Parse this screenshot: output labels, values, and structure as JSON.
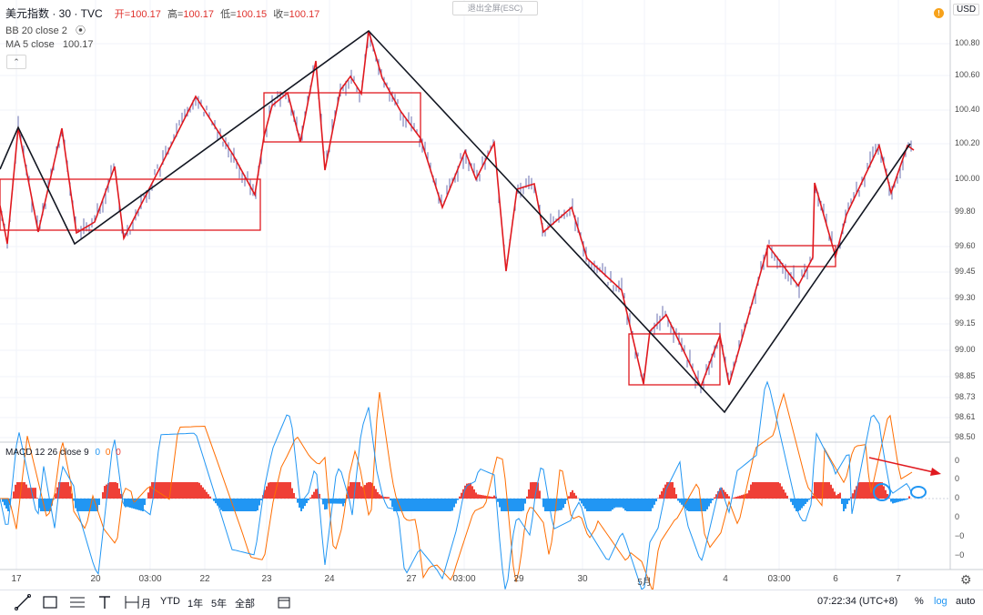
{
  "legend": {
    "symbol": "美元指数 · 30 · TVC",
    "open_label": "开=",
    "open": "100.17",
    "high_label": "高=",
    "high": "100.17",
    "low_label": "低=",
    "low": "100.15",
    "close_label": "收=",
    "close": "100.17",
    "bb": "BB 20 close 2",
    "ma": "MA 5 close",
    "ma_value": "100.17"
  },
  "esc_hint": "退出全屏(ESC)",
  "currency": "USD",
  "alert_icon": "!",
  "macd_legend": {
    "label": "MACD 12 26 close 9",
    "v1": "0",
    "v2": "0",
    "v3": "0"
  },
  "toolbar": {
    "ranges": [
      "月",
      "YTD",
      "1年",
      "5年",
      "全部"
    ],
    "time": "07:22:34 (UTC+8)",
    "percent": "%",
    "log": "log",
    "auto": "auto"
  },
  "colors": {
    "candle": "#6a6fb0",
    "zigzag_red": "#e0191f",
    "zigzag_black": "#131722",
    "macd_pos": "#ef4037",
    "macd_neg": "#2196f3",
    "macd_line": "#2196f3",
    "signal_line": "#ff6d00",
    "circle": "#2196f3"
  },
  "chart_data": [
    {
      "type": "line",
      "series_kind": "candlestick-with-zigzag-annotations",
      "y_axis": {
        "ticks": [
          "100.80",
          "100.60",
          "100.40",
          "100.20",
          "100.00",
          "99.80",
          "99.60",
          "99.45",
          "99.30",
          "99.15",
          "99.00",
          "98.85",
          "98.73",
          "98.61",
          "98.50"
        ],
        "range": [
          98.5,
          100.87
        ]
      },
      "x_axis": {
        "ticks": [
          "17",
          "20",
          "03:00",
          "22",
          "23",
          "24",
          "27",
          "03:00",
          "29",
          "30",
          "5月",
          "4",
          "03:00",
          "6",
          "7"
        ]
      },
      "black_zigzag": [
        {
          "x": "start",
          "y": 99.97
        },
        {
          "x": "17",
          "y": 100.3
        },
        {
          "x": "20",
          "y": 99.61
        },
        {
          "x": "24-late",
          "y": 100.86
        },
        {
          "x": "4",
          "y": 98.65
        },
        {
          "x": "7",
          "y": 100.2
        }
      ],
      "boxes": [
        {
          "from": "start",
          "to": "23",
          "top": 100.0,
          "bottom": 99.7
        },
        {
          "from": "23",
          "to": "27",
          "top": 100.5,
          "bottom": 100.22
        },
        {
          "from": "5月",
          "to": "4",
          "top": 99.1,
          "bottom": 98.8
        },
        {
          "from": "03:00 (4)",
          "to": "6",
          "top": 99.6,
          "bottom": 99.49
        }
      ]
    },
    {
      "type": "bar",
      "name": "MACD 12 26 close 9",
      "y_axis": {
        "ticks": [
          "0",
          "0",
          "0",
          "0",
          "−0",
          "−0",
          "−0"
        ]
      }
    }
  ]
}
